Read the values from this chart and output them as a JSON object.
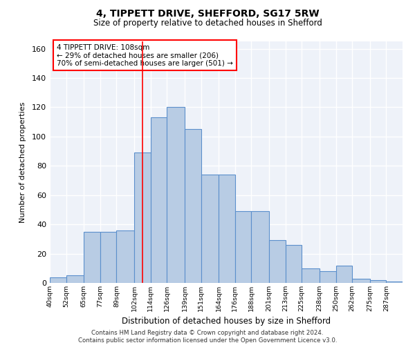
{
  "title": "4, TIPPETT DRIVE, SHEFFORD, SG17 5RW",
  "subtitle": "Size of property relative to detached houses in Shefford",
  "xlabel": "Distribution of detached houses by size in Shefford",
  "ylabel": "Number of detached properties",
  "bin_labels": [
    "40sqm",
    "52sqm",
    "65sqm",
    "77sqm",
    "89sqm",
    "102sqm",
    "114sqm",
    "126sqm",
    "139sqm",
    "151sqm",
    "164sqm",
    "176sqm",
    "188sqm",
    "201sqm",
    "213sqm",
    "225sqm",
    "238sqm",
    "250sqm",
    "262sqm",
    "275sqm",
    "287sqm"
  ],
  "bins": [
    40,
    52,
    65,
    77,
    89,
    102,
    114,
    126,
    139,
    151,
    164,
    176,
    188,
    201,
    213,
    225,
    238,
    250,
    262,
    275,
    287,
    299
  ],
  "bar_values": [
    4,
    5,
    35,
    35,
    36,
    89,
    113,
    120,
    105,
    74,
    74,
    49,
    49,
    29,
    26,
    10,
    8,
    12,
    3,
    2,
    1
  ],
  "bar_color": "#b8cce4",
  "bar_edge_color": "#5b8fcc",
  "bg_color": "#eef2f9",
  "grid_color": "#ffffff",
  "vline_x": 108,
  "vline_color": "red",
  "annotation_text": "4 TIPPETT DRIVE: 108sqm\n← 29% of detached houses are smaller (206)\n70% of semi-detached houses are larger (501) →",
  "annotation_box_color": "white",
  "annotation_box_edge": "red",
  "footer": "Contains HM Land Registry data © Crown copyright and database right 2024.\nContains public sector information licensed under the Open Government Licence v3.0.",
  "ylim": [
    0,
    165
  ],
  "yticks": [
    0,
    20,
    40,
    60,
    80,
    100,
    120,
    140,
    160
  ]
}
